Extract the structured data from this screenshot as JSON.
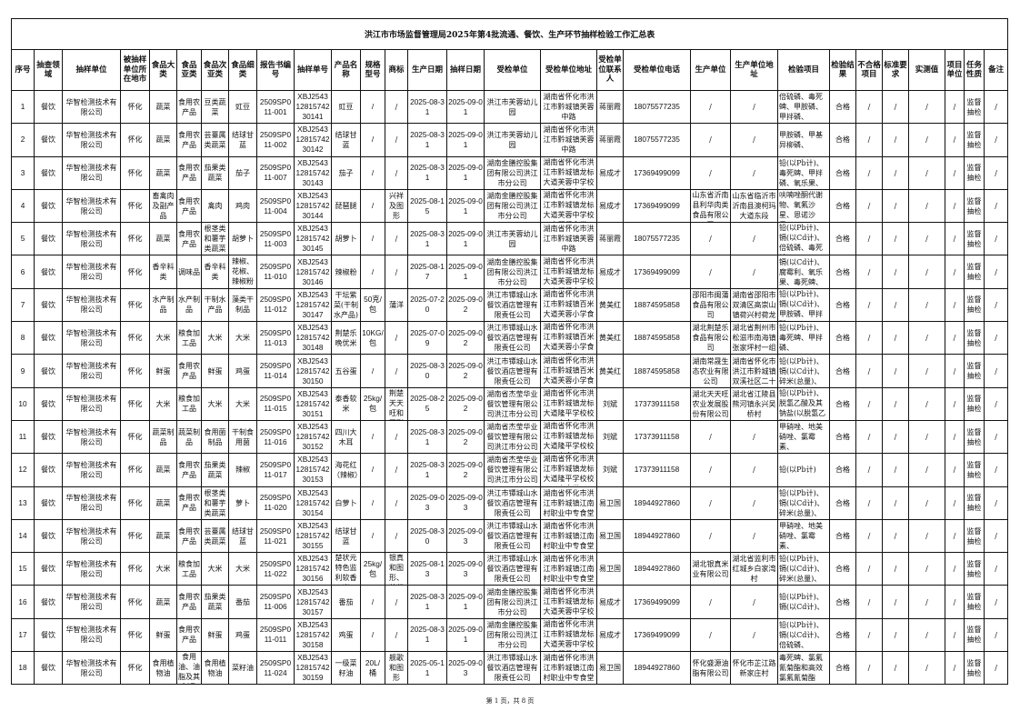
{
  "title": "洪江市市场监督管理局2025年第4批流通、餐饮、生产环节抽样检验工作汇总表",
  "headers": [
    "序号",
    "抽查领域",
    "抽样单位",
    "被抽样单位所在地市",
    "食品大类",
    "食品亚类",
    "食品次亚类",
    "食品细类",
    "报告书编号",
    "抽样单号",
    "产品名称",
    "规格型号",
    "商标",
    "生产日期",
    "抽样日期",
    "受检单位",
    "受检单位地址",
    "受检单位联系人",
    "受检单位电话",
    "生产单位",
    "生产单位地址",
    "检验项目",
    "检验结果",
    "不合格项目",
    "标准要求",
    "实测值",
    "项目单位",
    "任务性质",
    "备注"
  ],
  "rows": [
    [
      "1",
      "餐饮",
      "华智检测技术有限公司",
      "怀化",
      "蔬菜",
      "食用农产品",
      "豆类蔬菜",
      "豇豆",
      "2509SP011-001",
      "XBJ25431281574230141",
      "豇豆",
      "/",
      "/",
      "2025-08-31",
      "2025-09-01",
      "洪江市芙蓉幼儿园",
      "湖南省怀化市洪江市黔城镇芙蓉中路",
      "蒋丽霞",
      "18075577235",
      "/",
      "/",
      "倍硫磷、毒死蜱、甲胺磷、甲拌磷、",
      "合格",
      "/",
      "/",
      "/",
      "/",
      "监督抽检",
      "/"
    ],
    [
      "2",
      "餐饮",
      "华智检测技术有限公司",
      "怀化",
      "蔬菜",
      "食用农产品",
      "芸薹属类蔬菜",
      "结球甘蓝",
      "2509SP011-002",
      "XBJ25431281574230142",
      "结球甘蓝",
      "/",
      "/",
      "2025-08-31",
      "2025-09-01",
      "洪江市芙蓉幼儿园",
      "湖南省怀化市洪江市黔城镇芙蓉中路",
      "蒋丽霞",
      "18075577235",
      "/",
      "/",
      "甲胺磷、甲基异柳磷、",
      "合格",
      "/",
      "/",
      "/",
      "/",
      "监督抽检",
      "/"
    ],
    [
      "3",
      "餐饮",
      "华智检测技术有限公司",
      "怀化",
      "蔬菜",
      "食用农产品",
      "茄果类蔬菜",
      "茄子",
      "2509SP011-007",
      "XBJ25431281574230143",
      "茄子",
      "/",
      "/",
      "2025-08-31",
      "2025-09-01",
      "湖南金膳控股集团有限公司洪江市分公司",
      "湖南省怀化市洪江市黔城镇龙标大道芙蓉中学校内留餐食堂",
      "易成才",
      "17369499099",
      "/",
      "/",
      "铅(以Pb计)、毒死蜱、甲拌磷、氧乐果、",
      "合格",
      "/",
      "/",
      "/",
      "/",
      "监督抽检",
      "/"
    ],
    [
      "4",
      "餐饮",
      "华智检测技术有限公司",
      "怀化",
      "畜禽肉及副产品",
      "食用农产品",
      "禽肉",
      "鸡肉",
      "2509SP011-004",
      "XBJ25431281574230144",
      "琵琶腿",
      "/",
      "兴祥及图形",
      "2025-08-15",
      "2025-09-01",
      "湖南金膳控股集团有限公司洪江市分公司",
      "湖南省怀化市洪江市黔城镇龙标大道芙蓉中学校内留餐食堂",
      "易成才",
      "17369499099",
      "山东省沂南县利华肉类食品有限公司",
      "山东省临沂市沂南县澳柯玛大道东段",
      "呋喃唑酮代谢物、氧氟沙星、恩诺沙星、",
      "合格",
      "/",
      "/",
      "/",
      "/",
      "监督抽检",
      "/"
    ],
    [
      "5",
      "餐饮",
      "华智检测技术有限公司",
      "怀化",
      "蔬菜",
      "食用农产品",
      "根茎类和薯芋类蔬菜",
      "胡萝卜",
      "2509SP011-003",
      "XBJ25431281574230145",
      "胡萝卜",
      "/",
      "/",
      "2025-08-31",
      "2025-09-01",
      "洪江市芙蓉幼儿园",
      "湖南省怀化市洪江市黔城镇芙蓉中路",
      "蒋丽霞",
      "18075577235",
      "/",
      "/",
      "铅(以Pb计)、镉(以Cd计)、倍硫磷、毒死蜱、",
      "合格",
      "/",
      "/",
      "/",
      "/",
      "监督抽检",
      "/"
    ],
    [
      "6",
      "餐饮",
      "华智检测技术有限公司",
      "怀化",
      "香辛料类",
      "调味品",
      "香辛料类",
      "辣椒、花椒、辣椒粉等",
      "2509SP011-010",
      "XBJ25431281574230146",
      "辣椒粉",
      "/",
      "/",
      "2025-08-17",
      "2025-09-01",
      "湖南金膳控股集团有限公司洪江市分公司",
      "湖南省怀化市洪江市黔城镇龙标大道芙蓉中学校内留餐食堂",
      "易成才",
      "17369499099",
      "/",
      "/",
      "镉(以Cd计)、腐霉利、氧乐果、毒死蜱、",
      "合格",
      "/",
      "/",
      "/",
      "/",
      "监督抽检",
      "/"
    ],
    [
      "7",
      "餐饮",
      "华智检测技术有限公司",
      "怀化",
      "水产制品",
      "水产制品",
      "干制水产品",
      "藻类干制品",
      "2509SP011-012",
      "XBJ25431281574230147",
      "干坛紫菜(干制水产品)",
      "50克/包",
      "蒲洋",
      "2025-07-20",
      "2025-09-02",
      "洪江市镡城山水餐饮酒店管理有限责任公司",
      "湖南省怀化市洪江市黔城镇百米大道芙蓉小学食堂",
      "黄美红",
      "18874595858",
      "邵阳市闽蒲食品有限公司",
      "湖南省邵阳市双清区高崇山镇荷兴村荷龙",
      "铅(以Pb计)、镉(以Cd计)、甲胺磷、甲拌磷、",
      "合格",
      "/",
      "/",
      "/",
      "/",
      "监督抽检",
      "/"
    ],
    [
      "8",
      "餐饮",
      "华智检测技术有限公司",
      "怀化",
      "大米",
      "粮食加工品",
      "大米",
      "大米",
      "2509SP011-013",
      "XBJ25431281574230148",
      "荆楚乐晚优米",
      "10KG/包",
      "/",
      "2025-07-09",
      "2025-09-02",
      "洪江市镡城山水餐饮酒店管理有限责任公司",
      "湖南省怀化市洪江市黔城镇百米大道芙蓉小学食堂",
      "黄美红",
      "18874595858",
      "湖北荆楚乐食品有限公司",
      "湖北省荆州市松滋市南海镇张家坪村一组",
      "铅(以Pb计)、毒死蜱、甲拌磷、",
      "合格",
      "/",
      "/",
      "/",
      "/",
      "监督抽检",
      "/"
    ],
    [
      "9",
      "餐饮",
      "华智检测技术有限公司",
      "怀化",
      "鲜蛋",
      "食用农产品",
      "鲜蛋",
      "鸡蛋",
      "2509SP011-014",
      "XBJ25431281574230150",
      "五谷蛋",
      "/",
      "/",
      "2025-08-30",
      "2025-09-02",
      "洪江市镡城山水餐饮酒店管理有限责任公司",
      "湖南省怀化市洪江市黔城镇百米大道芙蓉小学食堂",
      "黄美红",
      "18874595858",
      "湖南常晟生态农业有限公司",
      "湖南省怀化市洪江市黔城镇双溪社区二十",
      "铅(以Pb计)、镉(以Cd计)、碎米(总量)、",
      "合格",
      "/",
      "/",
      "/",
      "/",
      "监督抽检",
      "/"
    ],
    [
      "10",
      "餐饮",
      "华智检测技术有限公司",
      "怀化",
      "大米",
      "粮食加工品",
      "大米",
      "大米",
      "2509SP011-015",
      "XBJ25431281574230151",
      "泰香软米",
      "25kg/包",
      "荆楚天天旺和图形",
      "2025-08-25",
      "2025-09-02",
      "湖南省杰莹华业餐饮管理有限公司洪江市分公司",
      "湖南省怀化市洪江市黔城镇龙标大道隆平学校校内食堂",
      "刘斌",
      "17373911158",
      "湖北天天旺农业发展股份有限公司",
      "湖北省江陵县熊河镇永兴吴桥村",
      "铅(以Pb计)、脱氢乙酸及其钠盐(以脱氢乙酸计)",
      "合格",
      "/",
      "/",
      "/",
      "/",
      "监督抽检",
      "/"
    ],
    [
      "11",
      "餐饮",
      "华智检测技术有限公司",
      "怀化",
      "蔬菜制品",
      "蔬菜制品",
      "食用菌制品",
      "干制食用菌",
      "2509SP011-016",
      "XBJ25431281574230152",
      "四川大木耳",
      "/",
      "/",
      "2025-08-31",
      "2025-09-02",
      "湖南省杰莹华业餐饮管理有限公司洪江市分公司",
      "湖南省怀化市洪江市黔城镇龙标大道隆平学校校内食堂",
      "刘斌",
      "17373911158",
      "/",
      "/",
      "甲硝唑、地美硝唑、氯霉素、",
      "合格",
      "/",
      "/",
      "/",
      "/",
      "监督抽检",
      "/"
    ],
    [
      "12",
      "餐饮",
      "华智检测技术有限公司",
      "怀化",
      "蔬菜",
      "食用农产品",
      "茄果类蔬菜",
      "辣椒",
      "2509SP011-017",
      "XBJ25431281574230153",
      "海花红（辣椒）",
      "/",
      "/",
      "2025-08-31",
      "2025-09-02",
      "湖南省杰莹华业餐饮管理有限公司洪江市分公司",
      "湖南省怀化市洪江市黔城镇龙标大道隆平学校校内食堂",
      "刘斌",
      "17373911158",
      "/",
      "/",
      "铅(以Pb计)",
      "合格",
      "/",
      "/",
      "/",
      "/",
      "监督抽检",
      "/"
    ],
    [
      "13",
      "餐饮",
      "华智检测技术有限公司",
      "怀化",
      "蔬菜",
      "食用农产品",
      "根茎类和薯芋类蔬菜",
      "萝卜",
      "2509SP011-020",
      "XBJ25431281574230154",
      "白萝卜",
      "/",
      "/",
      "2025-09-03",
      "2025-09-03",
      "洪江市镡城山水餐饮酒店管理有限责任公司",
      "湖南省怀化市洪江市黔城镇江南村职业中专食堂",
      "易卫国",
      "18944927860",
      "/",
      "/",
      "铅(以Pb计)、镉(以Cd计)、碎米(总量)、",
      "合格",
      "/",
      "/",
      "/",
      "/",
      "监督抽检",
      "/"
    ],
    [
      "14",
      "餐饮",
      "华智检测技术有限公司",
      "怀化",
      "蔬菜",
      "食用农产品",
      "芸薹属类蔬菜",
      "结球甘蓝",
      "2509SP011-021",
      "XBJ25431281574230155",
      "结球甘蓝",
      "/",
      "/",
      "2025-08-30",
      "2025-09-03",
      "洪江市镡城山水餐饮酒店管理有限责任公司",
      "湖南省怀化市洪江市黔城镇江南村职业中专食堂",
      "易卫国",
      "18944927860",
      "/",
      "/",
      "甲硝唑、地美硝唑、氯霉素、",
      "合格",
      "/",
      "/",
      "/",
      "/",
      "监督抽检",
      "/"
    ],
    [
      "15",
      "餐饮",
      "华智检测技术有限公司",
      "怀化",
      "大米",
      "粮食加工品",
      "大米",
      "大米",
      "2509SP011-022",
      "XBJ25431281574230156",
      "楚状元特色监利软香米",
      "25kg/包",
      "银真和图形、楚状元",
      "2025-08-13",
      "2025-09-03",
      "洪江市镡城山水餐饮酒店管理有限责任公司",
      "湖南省怀化市洪江市黔城镇江南村职业中专食堂",
      "易卫国",
      "18944927860",
      "湖北银真米业有限公司",
      "湖北省监利市红城乡白家湾村",
      "铅(以Pb计)、镉(以Cd计)、碎米(总量)、",
      "合格",
      "/",
      "/",
      "/",
      "/",
      "监督抽检",
      "/"
    ],
    [
      "16",
      "餐饮",
      "华智检测技术有限公司",
      "怀化",
      "蔬菜",
      "食用农产品",
      "茄果类蔬菜",
      "番茄",
      "2509SP011-006",
      "XBJ25431281574230157",
      "番茄",
      "/",
      "/",
      "2025-08-31",
      "2025-09-01",
      "湖南金膳控股集团有限公司洪江市分公司",
      "湖南省怀化市洪江市黔城镇龙标大道芙蓉中学校内留餐食堂",
      "易成才",
      "17369499099",
      "/",
      "/",
      "铅(以Pb计)、镉(以Cd计)、",
      "合格",
      "/",
      "/",
      "/",
      "/",
      "监督抽检",
      "/"
    ],
    [
      "17",
      "餐饮",
      "华智检测技术有限公司",
      "怀化",
      "鲜蛋",
      "食用农产品",
      "鲜蛋",
      "鸡蛋",
      "2509SP011-011",
      "XBJ25431281574230158",
      "鸡蛋",
      "/",
      "/",
      "2025-08-31",
      "2025-09-01",
      "湖南金膳控股集团有限公司洪江市分公司",
      "湖南省怀化市洪江市黔城镇龙标大道芙蓉中学校内留餐食堂",
      "易成才",
      "17369499099",
      "/",
      "/",
      "铅(以Pb计)、镉(以Cd计)、倍硫磷、",
      "合格",
      "/",
      "/",
      "/",
      "/",
      "监督抽检",
      "/"
    ],
    [
      "18",
      "餐饮",
      "华智检测技术有限公司",
      "怀化",
      "食用植物油",
      "食用油、油脂及其制品",
      "食用植物油",
      "菜籽油",
      "2509SP011-024",
      "XBJ25431281574230159",
      "一级菜籽油",
      "20L/桶",
      "舰歌和图形",
      "2025-05-11",
      "2025-09-03",
      "洪江市镡城山水餐饮酒店管理有限责任公司",
      "湖南省怀化市洪江市黔城镇江南村职业中专食堂",
      "易卫国",
      "18944927860",
      "怀化盛源油脂有限公司",
      "怀化市芷江路新家庄村",
      "毒死蜱、氯氟氰菊酯和高效氯氟氰菊酯",
      "合格",
      "/",
      "/",
      "/",
      "/",
      "监督抽检",
      "/"
    ]
  ],
  "footer": "第 1 页，共 8 页"
}
